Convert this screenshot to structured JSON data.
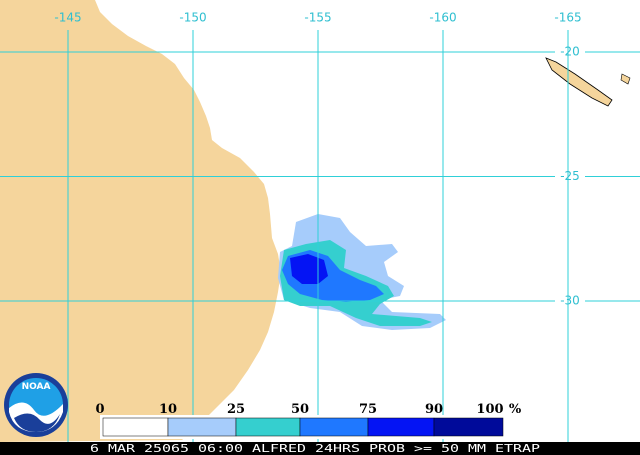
{
  "map": {
    "longitude_labels": [
      "-145",
      "-150",
      "-155",
      "-160",
      "-165"
    ],
    "latitude_labels": [
      "-20",
      "-25",
      "-30"
    ],
    "legend": {
      "labels": [
        "0",
        "10",
        "25",
        "50",
        "75",
        "90",
        "100"
      ],
      "unit": "%"
    },
    "footer": "6 MAR 25065 06:00 ALFRED 24HRS PROB >= 50 MM ETRAP",
    "logo": "NOAA"
  }
}
